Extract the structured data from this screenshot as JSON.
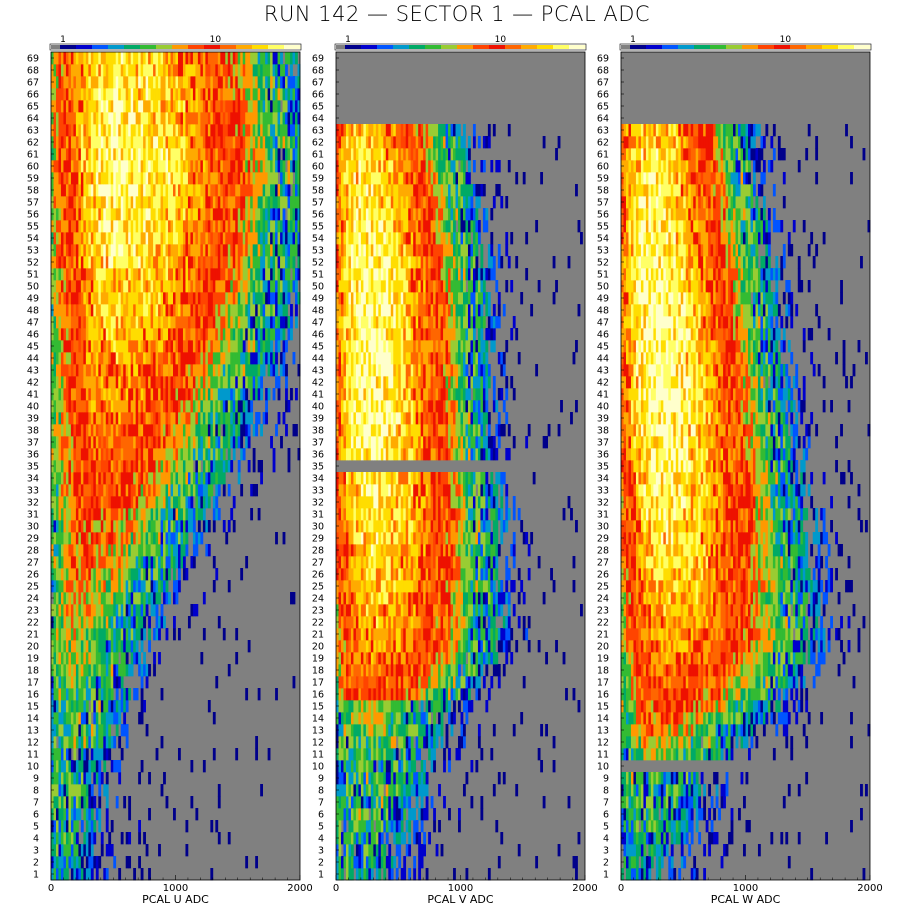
{
  "title": "RUN 142 — SECTOR 1 — PCAL ADC",
  "colors": {
    "background": "#ffffff",
    "empty_bin": "#808080",
    "palette": [
      "#00008b",
      "#0000cd",
      "#0055ff",
      "#0099cc",
      "#00aa66",
      "#33bb33",
      "#99cc33",
      "#ff9900",
      "#ff4400",
      "#ee1100",
      "#ff6600",
      "#ffaa00",
      "#ffdd00",
      "#ffff66",
      "#ffffcc"
    ]
  },
  "chart_data": [
    {
      "type": "heatmap",
      "xlabel": "PCAL U ADC",
      "x_ticks": [
        "0",
        "1000",
        "2000"
      ],
      "xlim": [
        0,
        2000
      ],
      "y_ticks": [
        "1",
        "2",
        "3",
        "4",
        "5",
        "6",
        "7",
        "8",
        "9",
        "10",
        "11",
        "12",
        "13",
        "14",
        "15",
        "16",
        "17",
        "18",
        "19",
        "20",
        "21",
        "22",
        "23",
        "24",
        "25",
        "26",
        "27",
        "28",
        "29",
        "30",
        "31",
        "32",
        "33",
        "34",
        "35",
        "36",
        "37",
        "38",
        "39",
        "40",
        "41",
        "42",
        "43",
        "44",
        "45",
        "46",
        "47",
        "48",
        "49",
        "50",
        "51",
        "52",
        "53",
        "54",
        "55",
        "56",
        "57",
        "58",
        "59",
        "60",
        "61",
        "62",
        "63",
        "64",
        "65",
        "66",
        "67",
        "68",
        "69"
      ],
      "ylim": [
        1,
        69
      ],
      "colorbar": {
        "scale": "log",
        "tick_labels": [
          "1",
          "10"
        ]
      },
      "ridge_adc": {
        "strips": [
          1,
          10,
          20,
          30,
          40,
          50,
          60,
          69
        ],
        "adc": [
          40,
          60,
          150,
          300,
          420,
          500,
          520,
          500
        ]
      },
      "peak_counts": {
        "strips": [
          1,
          10,
          20,
          30,
          40,
          50,
          60,
          69
        ],
        "counts": [
          1.5,
          3,
          6,
          10,
          20,
          32,
          42,
          35
        ]
      },
      "empty_strips": []
    },
    {
      "type": "heatmap",
      "xlabel": "PCAL V ADC",
      "x_ticks": [
        "0",
        "1000",
        "2000"
      ],
      "xlim": [
        0,
        2000
      ],
      "y_ticks": [
        "1",
        "2",
        "3",
        "4",
        "5",
        "6",
        "7",
        "8",
        "9",
        "10",
        "11",
        "12",
        "13",
        "14",
        "15",
        "16",
        "17",
        "18",
        "19",
        "20",
        "21",
        "22",
        "23",
        "24",
        "25",
        "26",
        "27",
        "28",
        "29",
        "30",
        "31",
        "32",
        "33",
        "34",
        "35",
        "36",
        "37",
        "38",
        "39",
        "40",
        "41",
        "42",
        "43",
        "44",
        "45",
        "46",
        "47",
        "48",
        "49",
        "50",
        "51",
        "52",
        "53",
        "54",
        "55",
        "56",
        "57",
        "58",
        "59",
        "60",
        "61",
        "62",
        "63",
        "64",
        "65",
        "66",
        "67",
        "68",
        "69"
      ],
      "ylim": [
        1,
        69
      ],
      "colorbar": {
        "scale": "log",
        "tick_labels": [
          "1",
          "10"
        ]
      },
      "ridge_adc": {
        "strips": [
          1,
          10,
          16,
          20,
          30,
          40,
          50,
          63
        ],
        "adc": [
          100,
          180,
          250,
          300,
          270,
          230,
          230,
          180
        ]
      },
      "peak_counts": {
        "strips": [
          1,
          10,
          15,
          16,
          20,
          30,
          40,
          50,
          63
        ],
        "counts": [
          2,
          4,
          6,
          14,
          22,
          36,
          45,
          45,
          30
        ]
      },
      "empty_strips": [
        35,
        64,
        65,
        66,
        67,
        68,
        69
      ]
    },
    {
      "type": "heatmap",
      "xlabel": "PCAL W ADC",
      "x_ticks": [
        "0",
        "1000",
        "2000"
      ],
      "xlim": [
        0,
        2000
      ],
      "y_ticks": [
        "1",
        "2",
        "3",
        "4",
        "5",
        "6",
        "7",
        "8",
        "9",
        "10",
        "11",
        "12",
        "13",
        "14",
        "15",
        "16",
        "17",
        "18",
        "19",
        "20",
        "21",
        "22",
        "23",
        "24",
        "25",
        "26",
        "27",
        "28",
        "29",
        "30",
        "31",
        "32",
        "33",
        "34",
        "35",
        "36",
        "37",
        "38",
        "39",
        "40",
        "41",
        "42",
        "43",
        "44",
        "45",
        "46",
        "47",
        "48",
        "49",
        "50",
        "51",
        "52",
        "53",
        "54",
        "55",
        "56",
        "57",
        "58",
        "59",
        "60",
        "61",
        "62",
        "63",
        "64",
        "65",
        "66",
        "67",
        "68",
        "69"
      ],
      "ylim": [
        1,
        69
      ],
      "colorbar": {
        "scale": "log",
        "tick_labels": [
          "1",
          "10"
        ]
      },
      "ridge_adc": {
        "strips": [
          1,
          10,
          16,
          20,
          30,
          40,
          50,
          63
        ],
        "adc": [
          100,
          200,
          330,
          380,
          330,
          270,
          230,
          190
        ]
      },
      "peak_counts": {
        "strips": [
          1,
          9,
          11,
          16,
          20,
          30,
          40,
          50,
          63
        ],
        "counts": [
          1.2,
          3,
          5,
          14,
          22,
          36,
          45,
          45,
          32
        ]
      },
      "empty_strips": [
        10,
        64,
        65,
        66,
        67,
        68,
        69
      ]
    }
  ]
}
